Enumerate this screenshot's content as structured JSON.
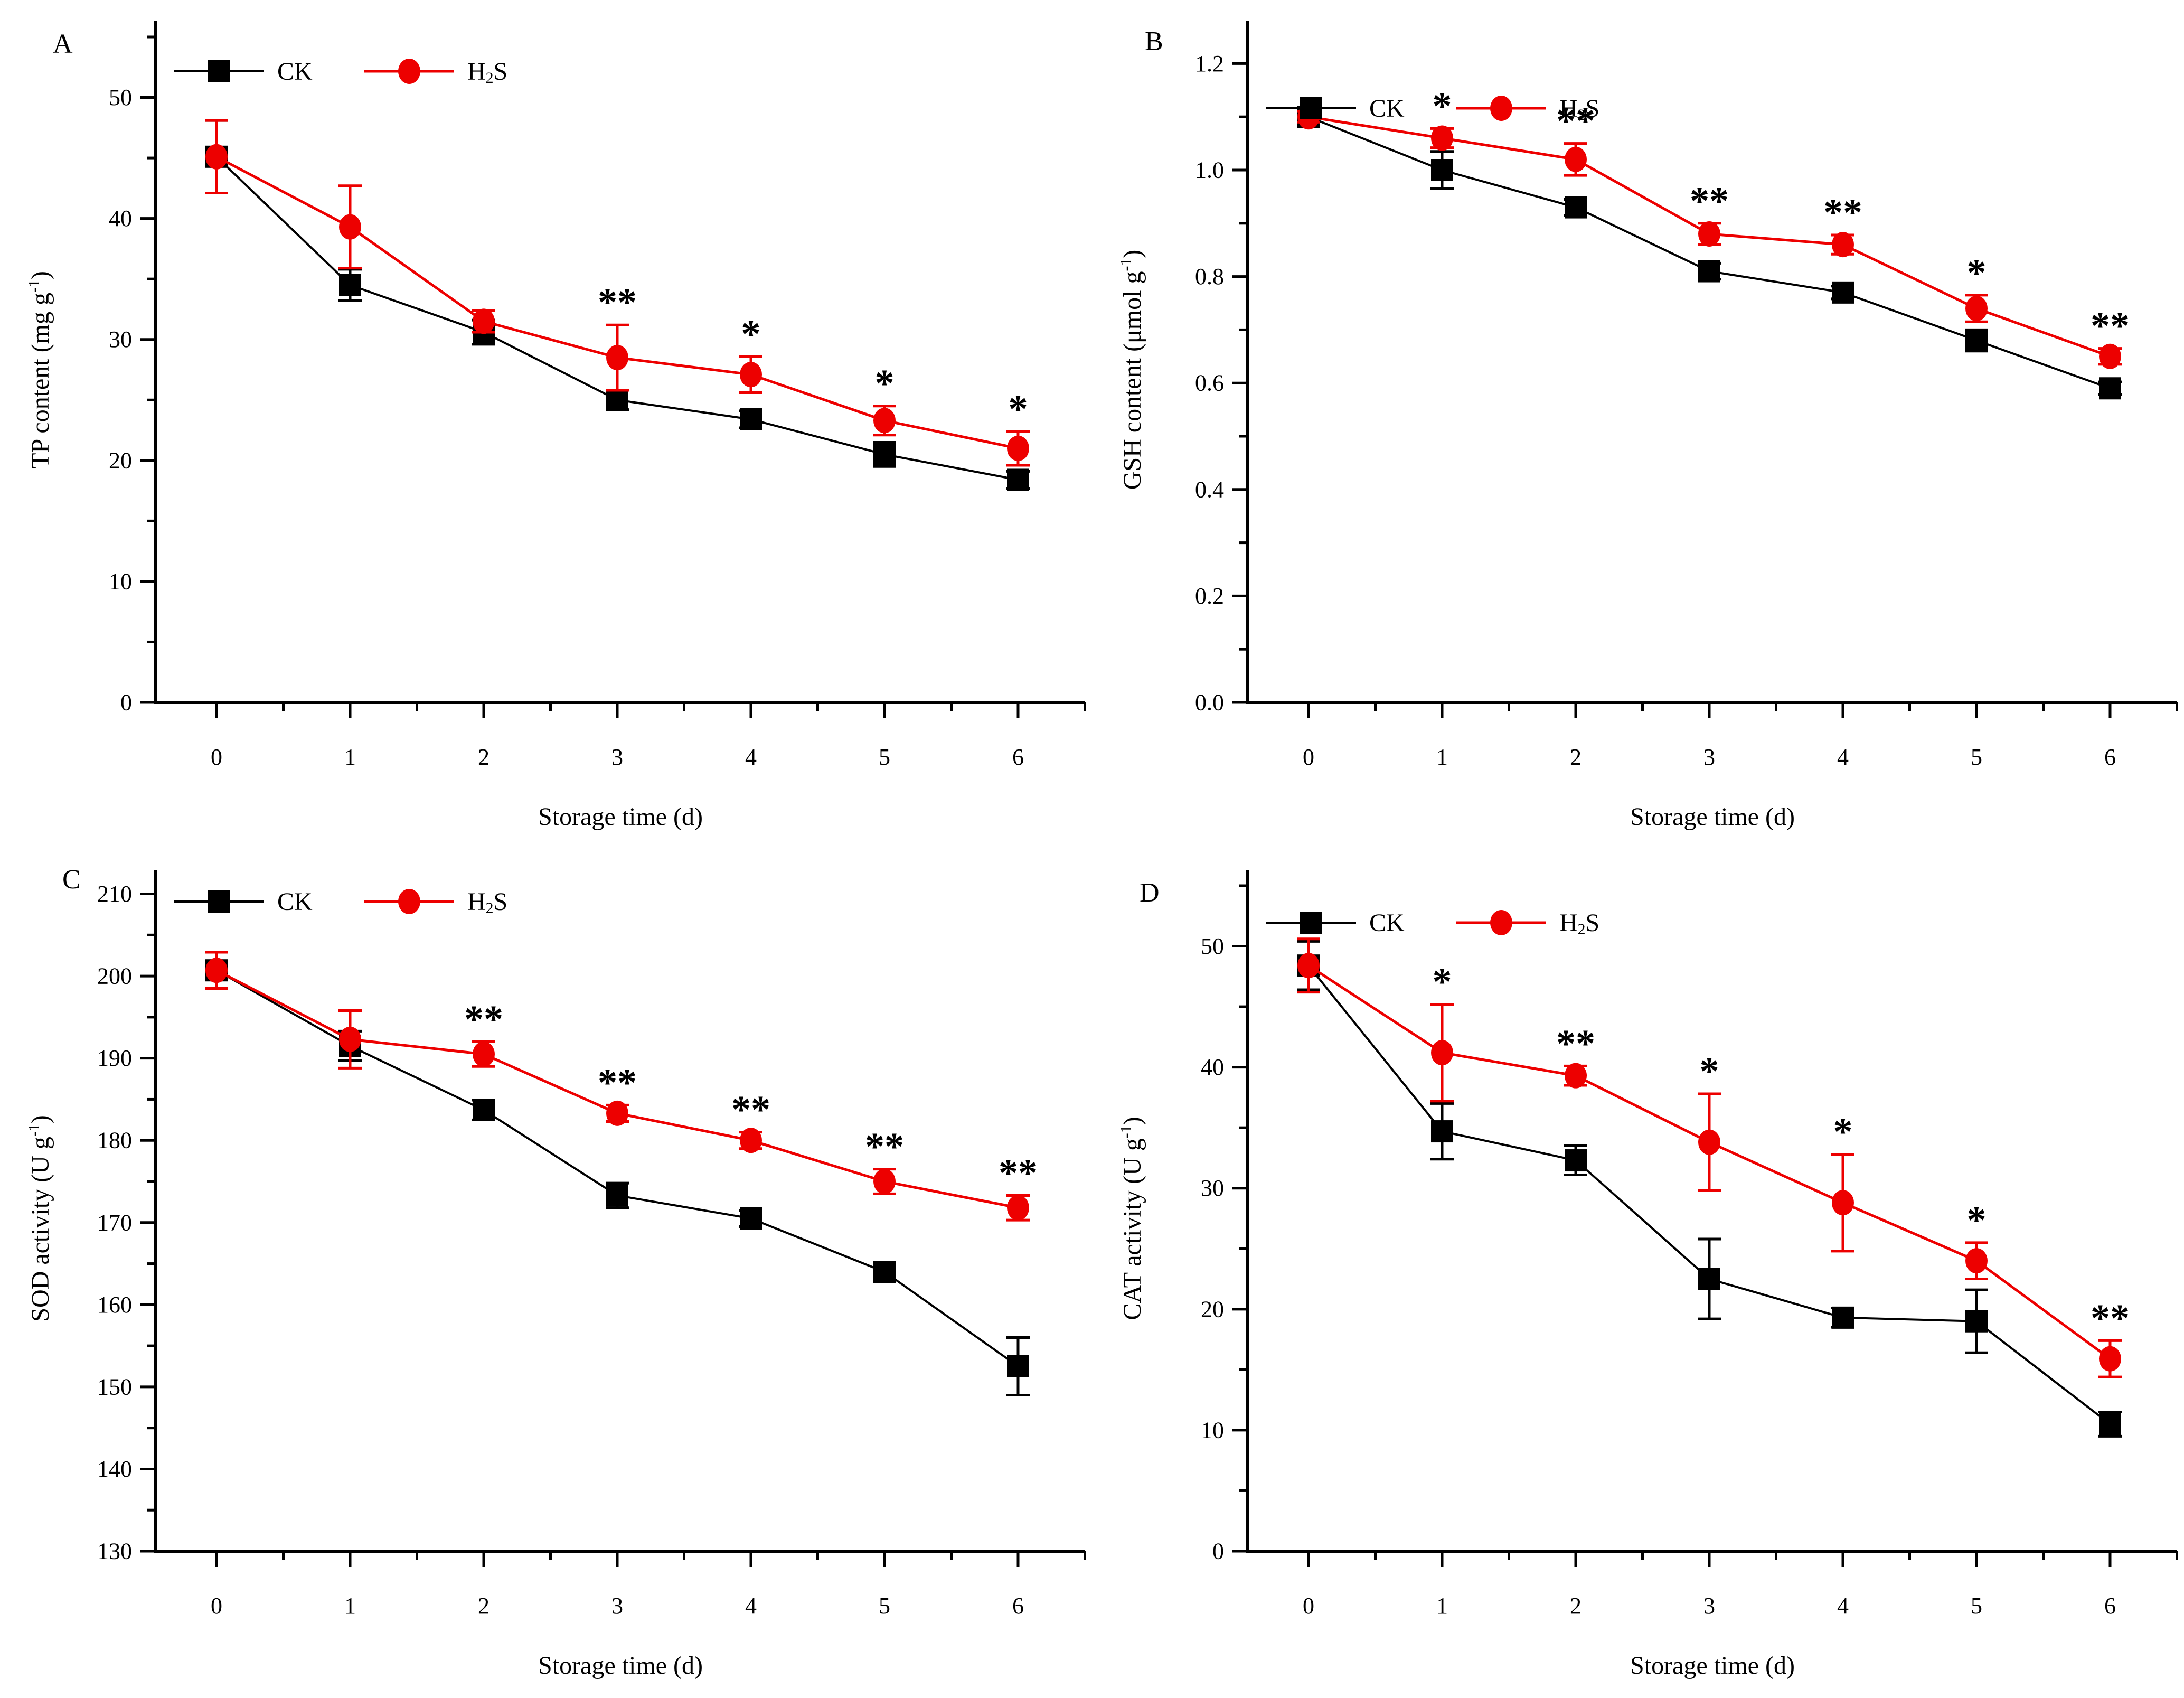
{
  "figure": {
    "background": "#ffffff"
  },
  "colors": {
    "ck": "#000000",
    "h2s": "#ed0000"
  },
  "legend": {
    "ck_label": {
      "pre": "CK",
      "sub": "",
      "post": ""
    },
    "h2s_label": {
      "pre": "H",
      "sub": "2",
      "post": "S"
    }
  },
  "chart_data": [
    {
      "panel": "A",
      "type": "line",
      "panel_label": "A",
      "xlabel": "Storage time (d)",
      "ylabel": {
        "pre": "TP content (mg g",
        "sup": "-1",
        "post": ")"
      },
      "x": [
        0,
        1,
        2,
        3,
        4,
        5,
        6
      ],
      "xticks": [
        0,
        1,
        2,
        3,
        4,
        5,
        6
      ],
      "ylim": [
        0,
        55
      ],
      "yticks": [
        0,
        10,
        20,
        30,
        40,
        50
      ],
      "ytick_decimals": 0,
      "yminor_step": 5,
      "legend_y": 135,
      "panel_label_xy": [
        100,
        100
      ],
      "grid": false,
      "legend_position": "top-left-inside",
      "series": [
        {
          "name": "CK",
          "marker": "square",
          "values": [
            45.1,
            34.5,
            30.6,
            25.0,
            23.4,
            20.5,
            18.4
          ],
          "errors": [
            3.0,
            1.3,
            1.0,
            0.8,
            0.7,
            1.0,
            0.7
          ]
        },
        {
          "name": "H2S",
          "marker": "circle",
          "values": [
            45.1,
            39.3,
            31.5,
            28.5,
            27.1,
            23.3,
            21.0
          ],
          "errors": [
            3.0,
            3.4,
            0.9,
            2.7,
            1.5,
            1.2,
            1.4
          ]
        }
      ],
      "significance": [
        {
          "x": 3,
          "label": "**"
        },
        {
          "x": 4,
          "label": "*"
        },
        {
          "x": 5,
          "label": "*"
        },
        {
          "x": 6,
          "label": "*"
        }
      ]
    },
    {
      "panel": "B",
      "type": "line",
      "panel_label": "B",
      "xlabel": "Storage time (d)",
      "ylabel": {
        "pre": "GSH content (μmol g",
        "sup": "-1",
        "post": ")"
      },
      "x": [
        0,
        1,
        2,
        3,
        4,
        5,
        6
      ],
      "xticks": [
        0,
        1,
        2,
        3,
        4,
        5,
        6
      ],
      "ylim": [
        0,
        1.25
      ],
      "yticks": [
        0.0,
        0.2,
        0.4,
        0.6,
        0.8,
        1.0,
        1.2
      ],
      "ytick_decimals": 1,
      "yminor_step": 0.1,
      "legend_y": 205,
      "panel_label_xy": [
        100,
        95
      ],
      "grid": false,
      "legend_position": "top-left-inside",
      "series": [
        {
          "name": "CK",
          "marker": "square",
          "values": [
            1.1,
            1.0,
            0.93,
            0.81,
            0.77,
            0.68,
            0.59
          ],
          "errors": [
            0.01,
            0.035,
            0.015,
            0.015,
            0.012,
            0.02,
            0.012
          ]
        },
        {
          "name": "H2S",
          "marker": "circle",
          "values": [
            1.1,
            1.06,
            1.02,
            0.88,
            0.86,
            0.74,
            0.65
          ],
          "errors": [
            0.01,
            0.018,
            0.03,
            0.02,
            0.018,
            0.025,
            0.015
          ]
        }
      ],
      "significance": [
        {
          "x": 1,
          "label": "*"
        },
        {
          "x": 2,
          "label": "**"
        },
        {
          "x": 3,
          "label": "**"
        },
        {
          "x": 4,
          "label": "**"
        },
        {
          "x": 5,
          "label": "*"
        },
        {
          "x": 6,
          "label": "**"
        }
      ]
    },
    {
      "panel": "C",
      "type": "line",
      "panel_label": "C",
      "xlabel": "Storage time (d)",
      "ylabel": {
        "pre": "SOD activity (U g",
        "sup": "-1",
        "post": ")"
      },
      "x": [
        0,
        1,
        2,
        3,
        4,
        5,
        6
      ],
      "xticks": [
        0,
        1,
        2,
        3,
        4,
        5,
        6
      ],
      "ylim": [
        130,
        211
      ],
      "yticks": [
        130,
        140,
        150,
        160,
        170,
        180,
        190,
        200,
        210
      ],
      "ytick_decimals": 0,
      "yminor_step": 5,
      "legend_y": 100,
      "panel_label_xy": [
        118,
        75
      ],
      "grid": false,
      "legend_position": "top-left-inside",
      "series": [
        {
          "name": "CK",
          "marker": "square",
          "values": [
            200.7,
            191.5,
            183.7,
            173.3,
            170.5,
            164.0,
            152.5
          ],
          "errors": [
            2.2,
            1.8,
            1.2,
            1.5,
            1.0,
            0.8,
            3.5
          ]
        },
        {
          "name": "H2S",
          "marker": "circle",
          "values": [
            200.7,
            192.3,
            190.5,
            183.3,
            180.0,
            175.0,
            171.8
          ],
          "errors": [
            2.2,
            3.5,
            1.5,
            1.0,
            1.0,
            1.5,
            1.5
          ]
        }
      ],
      "significance": [
        {
          "x": 2,
          "label": "**"
        },
        {
          "x": 3,
          "label": "**"
        },
        {
          "x": 4,
          "label": "**"
        },
        {
          "x": 5,
          "label": "**"
        },
        {
          "x": 6,
          "label": "**"
        }
      ]
    },
    {
      "panel": "D",
      "type": "line",
      "panel_label": "D",
      "xlabel": "Storage time (d)",
      "ylabel": {
        "pre": "CAT activity (U g",
        "sup": "-1",
        "post": ")"
      },
      "x": [
        0,
        1,
        2,
        3,
        4,
        5,
        6
      ],
      "xticks": [
        0,
        1,
        2,
        3,
        4,
        5,
        6
      ],
      "ylim": [
        0,
        55
      ],
      "yticks": [
        0,
        10,
        20,
        30,
        40,
        50
      ],
      "ytick_decimals": 0,
      "yminor_step": 5,
      "legend_y": 140,
      "panel_label_xy": [
        90,
        100
      ],
      "grid": false,
      "legend_position": "top-left-inside",
      "series": [
        {
          "name": "CK",
          "marker": "square",
          "values": [
            48.4,
            34.7,
            32.3,
            22.5,
            19.3,
            19.0,
            10.5
          ],
          "errors": [
            2.0,
            2.3,
            1.2,
            3.3,
            0.8,
            2.6,
            1.0
          ]
        },
        {
          "name": "H2S",
          "marker": "circle",
          "values": [
            48.4,
            41.2,
            39.3,
            33.8,
            28.8,
            24.0,
            15.9
          ],
          "errors": [
            2.2,
            4.0,
            0.8,
            4.0,
            4.0,
            1.5,
            1.5
          ]
        }
      ],
      "significance": [
        {
          "x": 1,
          "label": "*"
        },
        {
          "x": 2,
          "label": "**"
        },
        {
          "x": 3,
          "label": "*"
        },
        {
          "x": 4,
          "label": "*"
        },
        {
          "x": 5,
          "label": "*"
        },
        {
          "x": 6,
          "label": "**"
        }
      ]
    }
  ]
}
